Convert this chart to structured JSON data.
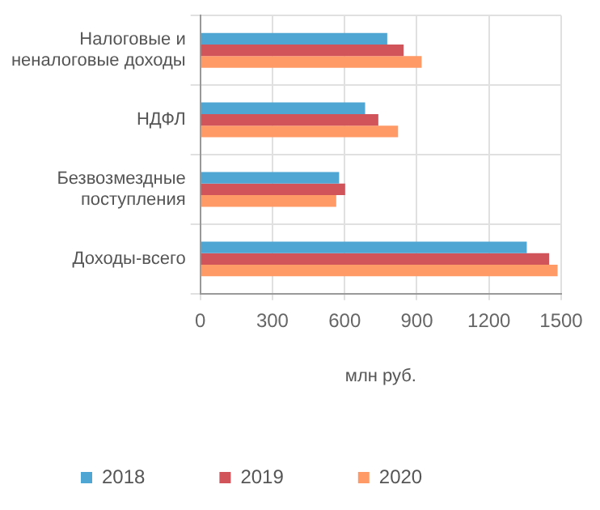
{
  "chart_data": {
    "type": "bar",
    "orientation": "horizontal",
    "xlabel": "млн руб.",
    "categories": [
      "Налоговые и неналоговые доходы",
      "НДФЛ",
      "Безвозмездные поступления",
      "Доходы-всего"
    ],
    "series": [
      {
        "name": "2018",
        "color": "#4fa6d3",
        "values": [
          777,
          685,
          577,
          1357
        ]
      },
      {
        "name": "2019",
        "color": "#d2545b",
        "values": [
          845,
          740,
          602,
          1450
        ]
      },
      {
        "name": "2020",
        "color": "#ff9a66",
        "values": [
          920,
          822,
          565,
          1485
        ]
      }
    ],
    "xlim": [
      0,
      1500
    ],
    "xticks": [
      0,
      300,
      600,
      900,
      1200,
      1500
    ],
    "grid": true,
    "legend": "bottom"
  }
}
